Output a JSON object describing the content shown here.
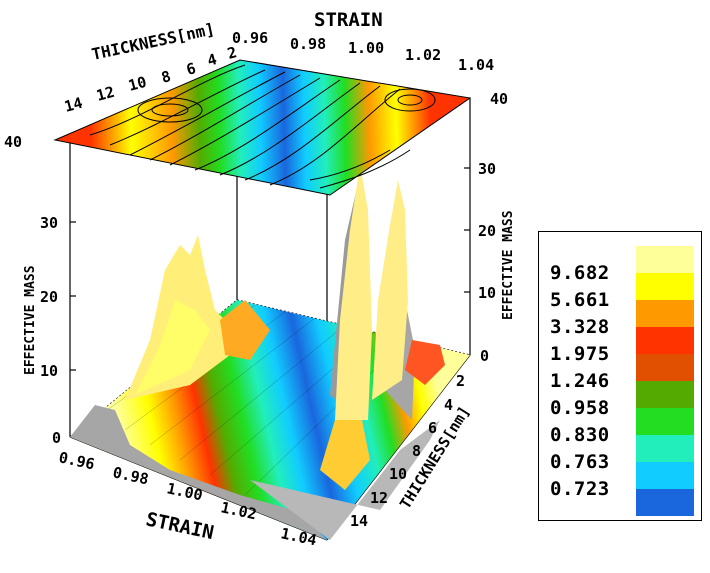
{
  "chart_data": {
    "type": "surface3d",
    "title": "",
    "x_axis": {
      "label": "STRAIN",
      "range": [
        0.96,
        1.04
      ],
      "ticks": [
        "0.96",
        "0.98",
        "1.00",
        "1.02",
        "1.04"
      ]
    },
    "y_axis": {
      "label": "THICKNESS[nm]",
      "range": [
        2,
        14
      ],
      "ticks": [
        "14",
        "12",
        "10",
        "8",
        "6",
        "4",
        "2"
      ]
    },
    "z_axis": {
      "label": "EFFECTIVE MASS",
      "range": [
        0,
        40
      ],
      "ticks": [
        "0",
        "10",
        "20",
        "30",
        "40"
      ]
    },
    "contour_projection": "top plane at effective mass 40",
    "colorbar": {
      "levels": [
        "9.682",
        "5.661",
        "3.328",
        "1.975",
        "1.246",
        "0.958",
        "0.830",
        "0.763",
        "0.723"
      ],
      "colors": [
        "#ffff99",
        "#ffff00",
        "#ff9900",
        "#ff3300",
        "#e05000",
        "#55aa00",
        "#22dd22",
        "#22eebb",
        "#11ccff",
        "#1a66dd"
      ]
    },
    "features": [
      {
        "description": "peak",
        "strain": 0.98,
        "thickness": 14,
        "effective_mass": 33
      },
      {
        "description": "peak",
        "strain": 1.02,
        "thickness": 3,
        "effective_mass": 40
      },
      {
        "description": "peak",
        "strain": 1.03,
        "thickness": 4,
        "effective_mass": 35
      },
      {
        "description": "minimum valley",
        "strain": 1.0,
        "thickness": 8,
        "effective_mass": 0.7
      }
    ]
  },
  "labels": {
    "strain_top": "STRAIN",
    "thickness_top": "THICKNESS[nm]",
    "effmass_left": "EFFECTIVE MASS",
    "effmass_right": "EFFECTIVE MASS",
    "strain_bottom": "STRAIN",
    "thickness_right": "THICKNESS[nm]"
  },
  "ticks": {
    "top_strain": [
      "0.96",
      "0.98",
      "1.00",
      "1.02",
      "1.04"
    ],
    "top_thickness": [
      "14",
      "12",
      "10",
      "8",
      "6",
      "4",
      "2"
    ],
    "right_top_z": "40",
    "left_z": [
      "40",
      "30",
      "20",
      "10",
      "0"
    ],
    "right_z": [
      "30",
      "20",
      "10",
      "0"
    ],
    "bottom_strain": [
      "0.96",
      "0.98",
      "1.00",
      "1.02",
      "1.04"
    ],
    "right_thickness": [
      "2",
      "4",
      "6",
      "8",
      "10",
      "12",
      "14"
    ]
  }
}
